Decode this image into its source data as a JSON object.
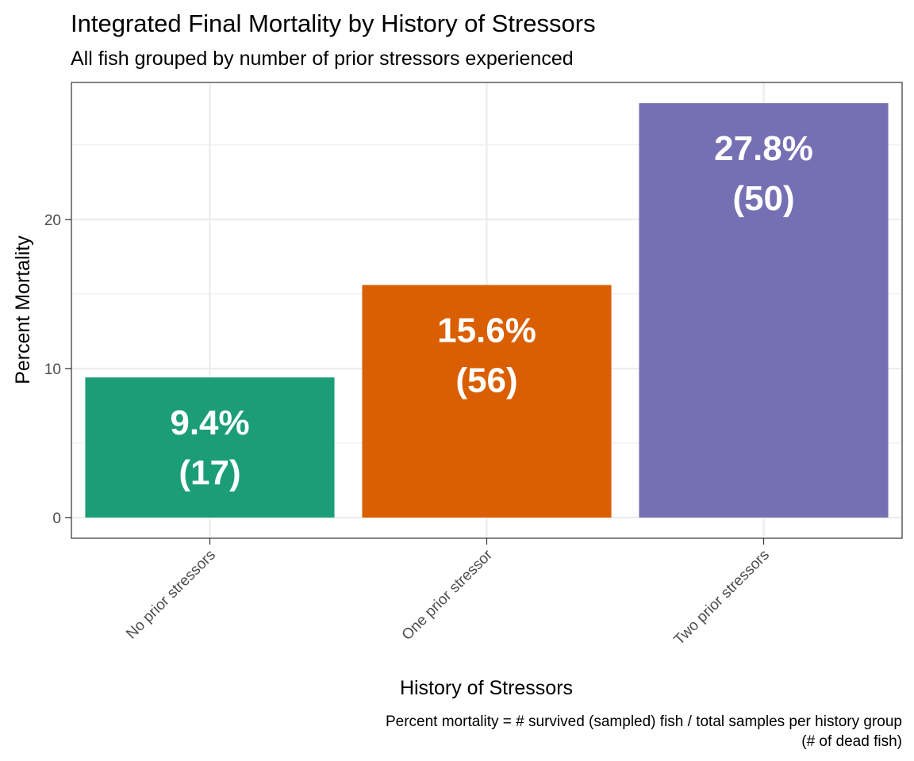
{
  "chart_data": {
    "type": "bar",
    "title": "Integrated Final Mortality by History of Stressors",
    "subtitle": "All fish grouped by number of prior stressors experienced",
    "xlabel": "History of Stressors",
    "ylabel": "Percent Mortality",
    "caption_line1": "Percent mortality = # survived (sampled) fish / total samples per history group",
    "caption_line2": "(# of dead fish)",
    "categories": [
      "No prior stressors",
      "One prior stressor",
      "Two prior stressors"
    ],
    "values": [
      9.4,
      15.6,
      27.8
    ],
    "labels": [
      "9.4%",
      "15.6%",
      "27.8%"
    ],
    "counts": [
      "(17)",
      "(56)",
      "(50)"
    ],
    "colors": [
      "#1b9e77",
      "#d95f02",
      "#7570b3"
    ],
    "y_ticks": [
      0,
      10,
      20
    ],
    "ylim": [
      -1.39,
      29.19
    ],
    "grid": true,
    "legend": "none"
  }
}
